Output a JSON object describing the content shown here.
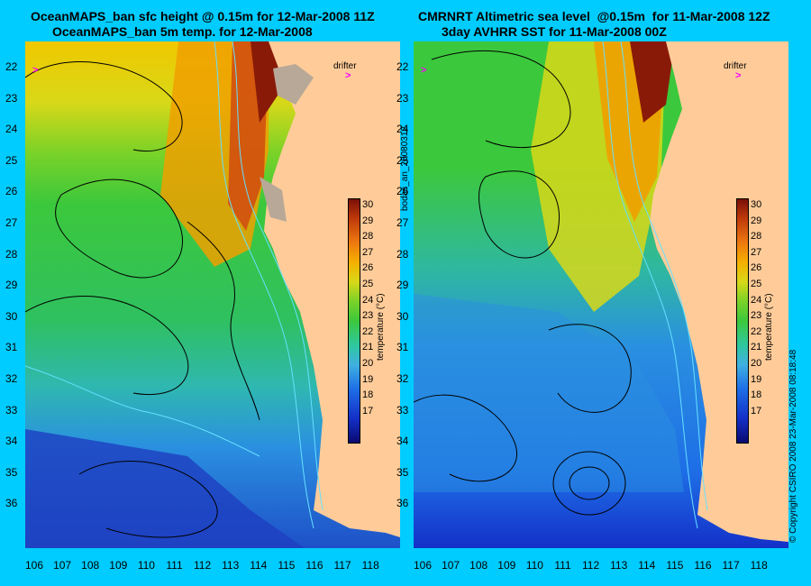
{
  "left_panel": {
    "title_line1": "OceanMAPS_ban sfc height @ 0.15m for 12-Mar-2008 11Z",
    "title_line2": "OceanMAPS_ban 5m temp. for 12-Mar-2008"
  },
  "right_panel": {
    "title_line1": "CMRNRT Altimetric sea level  @0.15m  for 11-Mar-2008 12Z",
    "title_line2": "3day AVHRR SST for 11-Mar-2008 00Z"
  },
  "drifter_label": "drifter",
  "drifter_mark": ">",
  "latitudes": [
    "22",
    "23",
    "24",
    "25",
    "26",
    "27",
    "28",
    "29",
    "30",
    "31",
    "32",
    "33",
    "34",
    "35",
    "36"
  ],
  "longitudes": [
    "106",
    "107",
    "108",
    "109",
    "110",
    "111",
    "112",
    "113",
    "114",
    "115",
    "116",
    "117",
    "118"
  ],
  "colorbar": {
    "ticks": [
      "30",
      "29",
      "28",
      "27",
      "26",
      "25",
      "24",
      "23",
      "22",
      "21",
      "20",
      "19",
      "18",
      "17"
    ],
    "label": "temperature (°C)"
  },
  "side_text_middle": "bodas_an_20080312",
  "side_text_right": "© Copyright CSIRO 2008   23-Mar-2008 08:18:48",
  "colors": {
    "background": "#00ccff",
    "land": "#ffcc99",
    "drifter": "#ff00ff",
    "contour": "#000000",
    "bathymetry": "#66e0ff"
  }
}
